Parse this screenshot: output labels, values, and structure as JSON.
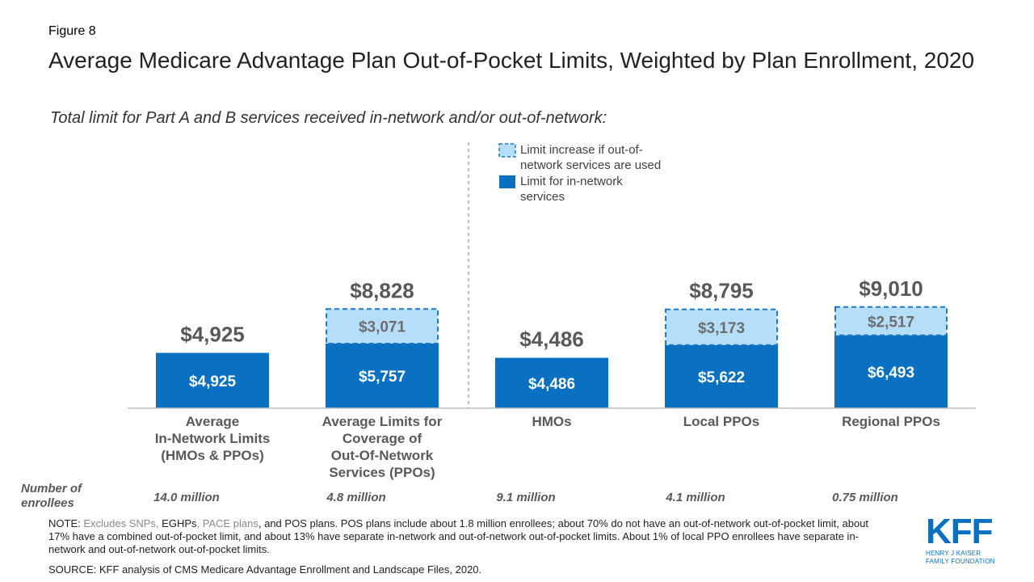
{
  "figure_label": "Figure 8",
  "title": "Average Medicare Advantage Plan Out-of-Pocket Limits, Weighted by Plan Enrollment, 2020",
  "subtitle": "Total limit for Part A and B services received in-network and/or out-of-network:",
  "colors": {
    "in_network": "#0a70c2",
    "increase": "#b5defb",
    "increase_border": "#1f78c8",
    "text_gray": "#595959"
  },
  "chart_data": {
    "type": "bar",
    "stacked": true,
    "title": "Average Medicare Advantage Plan Out-of-Pocket Limits, Weighted by Plan Enrollment, 2020",
    "categories": [
      "Average In-Network Limits (HMOs & PPOs)",
      "Average Limits for Coverage of Out-Of-Network Services (PPOs)",
      "HMOs",
      "Local PPOs",
      "Regional PPOs"
    ],
    "category_lines": [
      [
        "Average",
        "In-Network Limits",
        "(HMOs & PPOs)"
      ],
      [
        "Average Limits for",
        "Coverage of",
        "Out-Of-Network",
        "Services (PPOs)"
      ],
      [
        "HMOs"
      ],
      [
        "Local PPOs"
      ],
      [
        "Regional PPOs"
      ]
    ],
    "series": [
      {
        "name": "Limit for in-network services",
        "values": [
          4925,
          5757,
          4486,
          5622,
          6493
        ],
        "labels": [
          "$4,925",
          "$5,757",
          "$4,486",
          "$5,622",
          "$6,493"
        ]
      },
      {
        "name": "Limit increase if out-of-network services are used",
        "values": [
          null,
          3071,
          null,
          3173,
          2517
        ],
        "labels": [
          "",
          "$3,071",
          "",
          "$3,173",
          "$2,517"
        ]
      }
    ],
    "totals": [
      4925,
      8828,
      4486,
      8795,
      9010
    ],
    "total_labels": [
      "$4,925",
      "$8,828",
      "$4,486",
      "$8,795",
      "$9,010"
    ],
    "ylim": [
      0,
      10000
    ],
    "grid": false,
    "legend": {
      "position": "top-center",
      "entries": [
        {
          "lines": [
            "Limit increase if out-of-",
            "network services are used"
          ]
        },
        {
          "lines": [
            "Limit for in-network",
            "services"
          ]
        }
      ]
    },
    "enrollees_label": "Number of enrollees",
    "enrollees": [
      "14.0 million",
      "4.8 million",
      "9.1 million",
      "4.1 million",
      "0.75 million"
    ]
  },
  "note": {
    "prefix": "NOTE: ",
    "muted1": "Excludes SNPs, ",
    "plain1": "EGHPs",
    "muted2": ", PACE plans",
    "rest": ", and POS plans. POS plans include about 1.8 million enrollees; about 70% do not have an out-of-network out-of-pocket limit, about 17% have a combined out-of-pocket limit, and about 13% have separate in-network and out-of-network out-of-pocket limits. About 1% of local PPO enrollees have separate in-network and out-of-network out-of-pocket limits."
  },
  "source": "SOURCE: KFF analysis of CMS Medicare Advantage Enrollment and Landscape Files, 2020.",
  "logo": {
    "mark": "KFF",
    "line1": "HENRY J KAISER",
    "line2": "FAMILY FOUNDATION"
  }
}
